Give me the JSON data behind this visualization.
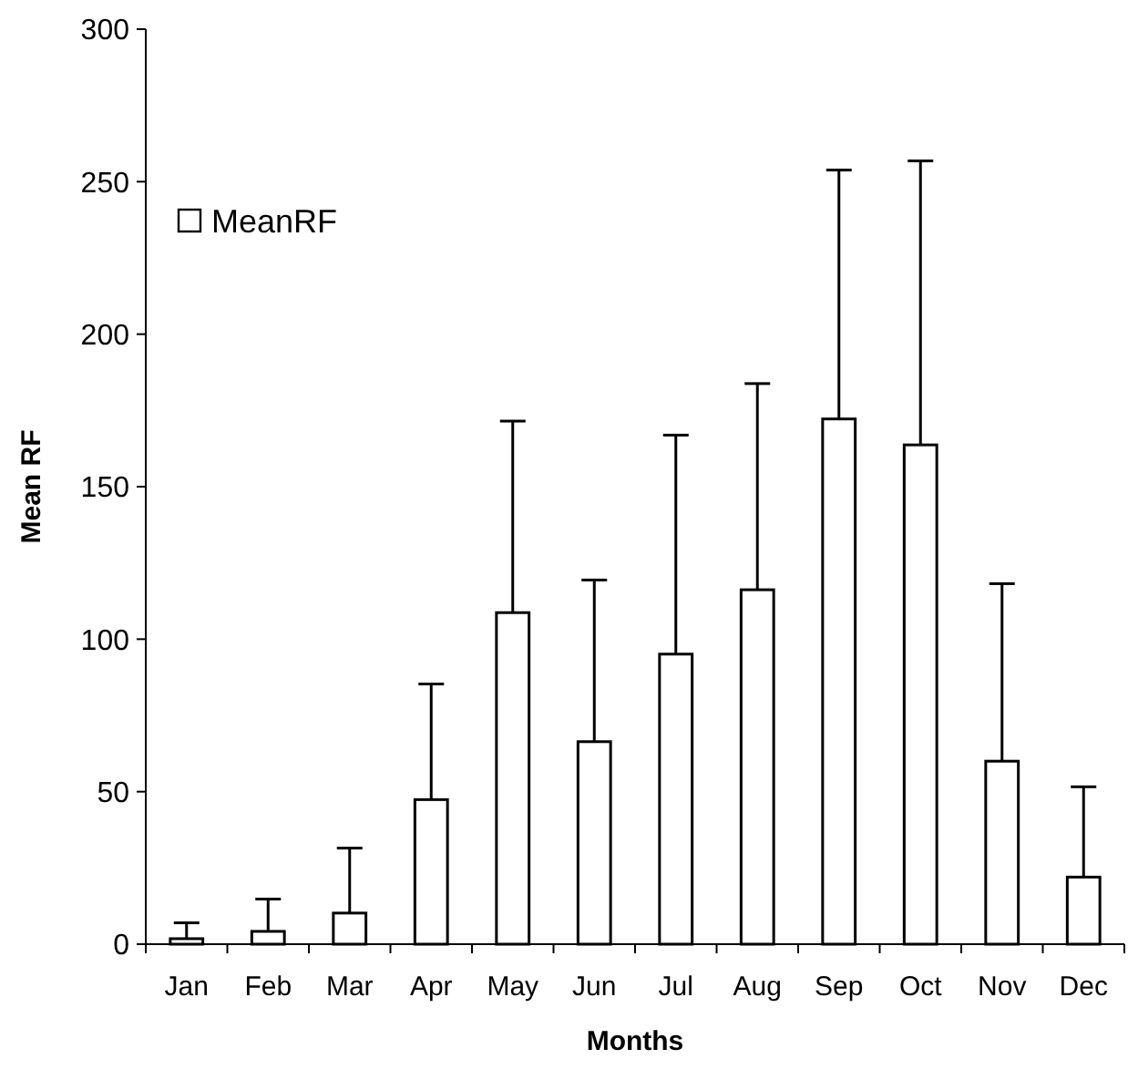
{
  "chart_data": {
    "type": "bar",
    "xlabel": "Months",
    "ylabel": "Mean RF",
    "categories": [
      "Jan",
      "Feb",
      "Mar",
      "Apr",
      "May",
      "Jun",
      "Jul",
      "Aug",
      "Sep",
      "Oct",
      "Nov",
      "Dec"
    ],
    "series": [
      {
        "name": "MeanRF",
        "color": "#ffffff",
        "values": [
          1.8,
          4.2,
          10.2,
          47.4,
          108.7,
          66.4,
          95.1,
          116.2,
          172.2,
          163.7,
          60,
          22
        ],
        "errors": [
          [
            1.8,
            7
          ],
          [
            4.2,
            14.8
          ],
          [
            10.2,
            31.5
          ],
          [
            47.4,
            85.3
          ],
          [
            108.7,
            171.5
          ],
          [
            66.4,
            119.4
          ],
          [
            95.1,
            166.9
          ],
          [
            116.2,
            183.8
          ],
          [
            172.2,
            253.8
          ],
          [
            163.7,
            256.8
          ],
          [
            60,
            118.2
          ],
          [
            22,
            51.6
          ]
        ]
      }
    ],
    "ylim": [
      0,
      300
    ],
    "yticks": [
      0,
      50,
      100,
      150,
      200,
      250,
      300
    ],
    "grid": false,
    "legend": "top left"
  }
}
